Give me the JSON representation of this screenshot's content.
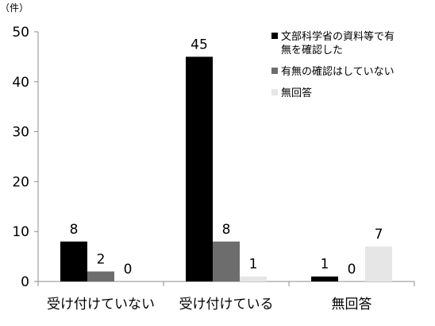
{
  "chart_data": {
    "type": "bar",
    "unit_label": "（件）",
    "categories": [
      "受け付けていない",
      "受け付けている",
      "無回答"
    ],
    "series": [
      {
        "name": "文部科学省の資料等で有無を確認した",
        "color": "#000000",
        "values": [
          8,
          45,
          1
        ]
      },
      {
        "name": "有無の確認はしていない",
        "color": "#6d6d6d",
        "values": [
          2,
          8,
          0
        ]
      },
      {
        "name": "無回答",
        "color": "#e6e6e6",
        "values": [
          0,
          1,
          7
        ]
      }
    ],
    "ylim": [
      0,
      50
    ],
    "yticks": [
      0,
      10,
      20,
      30,
      40,
      50
    ],
    "grid": false,
    "legend_position": "top-right"
  }
}
